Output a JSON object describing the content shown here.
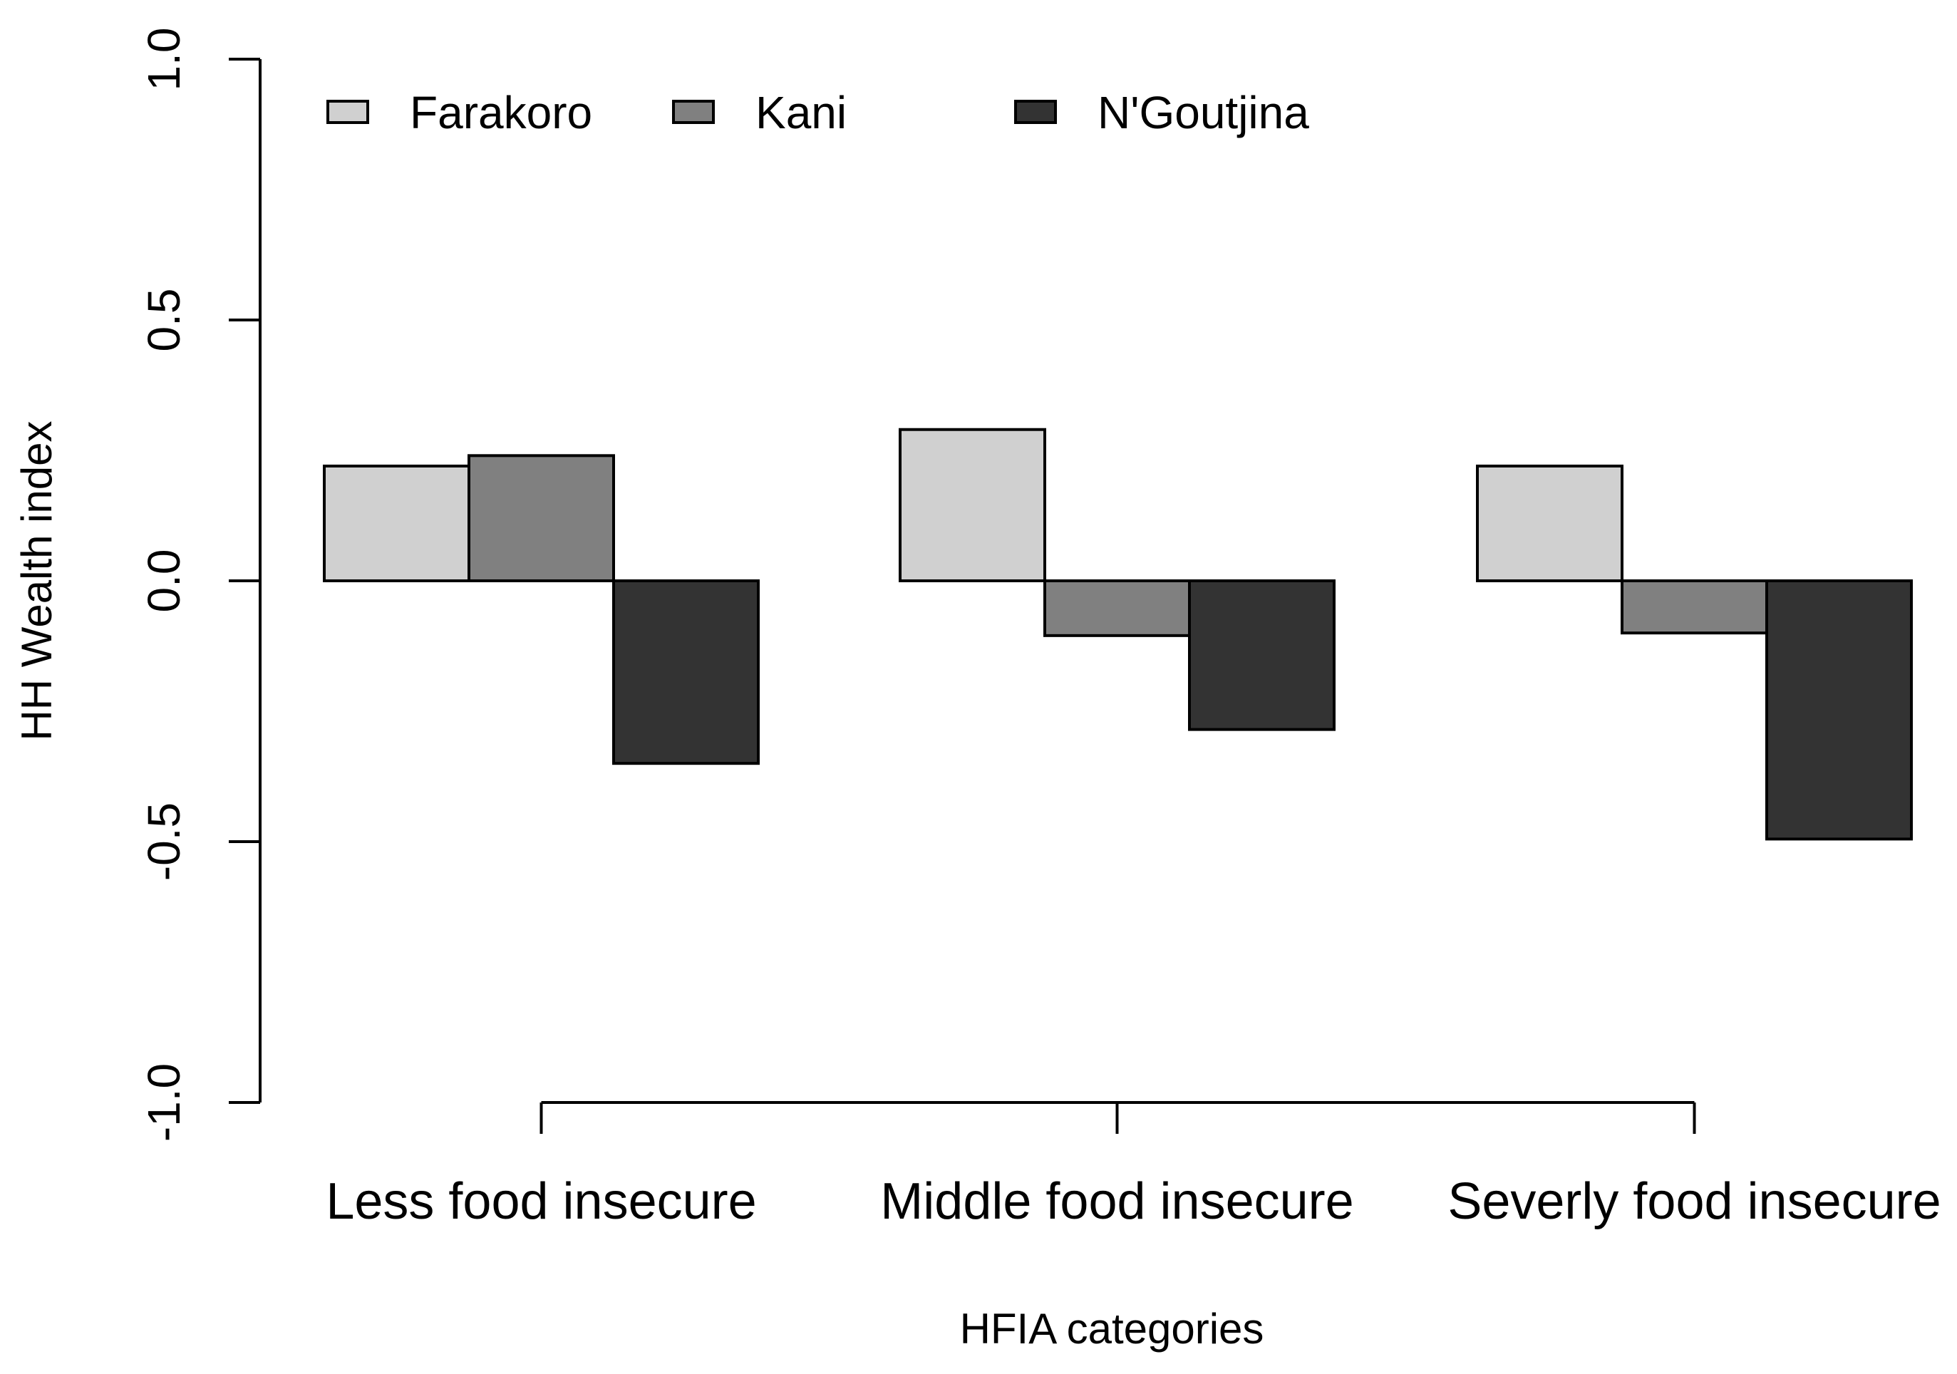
{
  "chart_data": {
    "type": "bar",
    "title": "",
    "xlabel": "HFIA categories",
    "ylabel": "HH Wealth index",
    "ylim": [
      -1.0,
      1.0
    ],
    "yticks": [
      "-1.0",
      "-0.5",
      "0.0",
      "0.5",
      "1.0"
    ],
    "categories": [
      "Less food insecure",
      "Middle food insecure",
      "Severly food insecure"
    ],
    "series": [
      {
        "name": "Farakoro",
        "color": "#d0d0d0",
        "values": [
          0.22,
          0.29,
          0.22
        ]
      },
      {
        "name": "Kani",
        "color": "#808080",
        "values": [
          0.24,
          -0.105,
          -0.1
        ]
      },
      {
        "name": "N'Goutjina",
        "color": "#333333",
        "values": [
          -0.35,
          -0.285,
          -0.495
        ]
      }
    ],
    "legend": "top-left, horizontal",
    "grid": false
  }
}
